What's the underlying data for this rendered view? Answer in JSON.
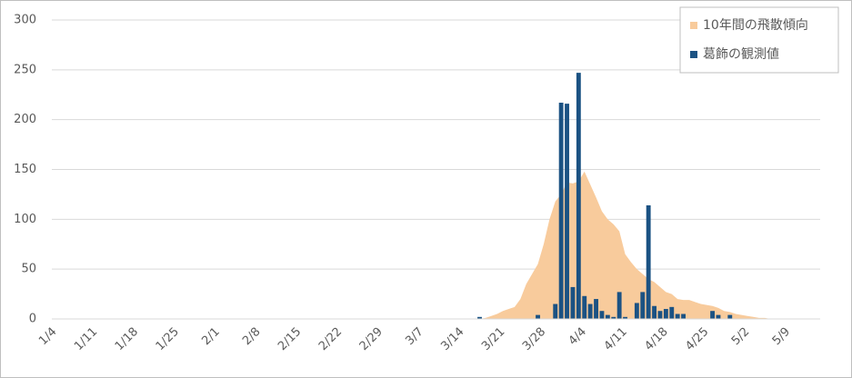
{
  "chart_data": {
    "type": "bar",
    "categories": [
      "1/4",
      null,
      null,
      null,
      null,
      null,
      null,
      "1/11",
      null,
      null,
      null,
      null,
      null,
      null,
      "1/18",
      null,
      null,
      null,
      null,
      null,
      null,
      "1/25",
      null,
      null,
      null,
      null,
      null,
      null,
      "2/1",
      null,
      null,
      null,
      null,
      null,
      null,
      "2/8",
      null,
      null,
      null,
      null,
      null,
      null,
      "2/15",
      null,
      null,
      null,
      null,
      null,
      null,
      "2/22",
      null,
      null,
      null,
      null,
      null,
      null,
      "2/29",
      null,
      null,
      null,
      null,
      null,
      null,
      "3/7",
      null,
      null,
      null,
      null,
      null,
      null,
      "3/14",
      null,
      null,
      null,
      null,
      null,
      null,
      "3/21",
      null,
      null,
      null,
      null,
      null,
      null,
      "3/28",
      null,
      null,
      null,
      null,
      null,
      null,
      "4/4",
      null,
      null,
      null,
      null,
      null,
      null,
      "4/11",
      null,
      null,
      null,
      null,
      null,
      null,
      "4/18",
      null,
      null,
      null,
      null,
      null,
      null,
      "4/25",
      null,
      null,
      null,
      null,
      null,
      null,
      "5/2",
      null,
      null,
      null,
      null,
      null,
      null,
      "5/9",
      null,
      null,
      null,
      null,
      null
    ],
    "series": [
      {
        "name": "10年間の飛散傾向",
        "type": "area",
        "color": "#f8cb9c",
        "values": [
          0,
          0,
          0,
          0,
          0,
          0,
          0,
          0,
          0,
          0,
          0,
          0,
          0,
          0,
          0,
          0,
          0,
          0,
          0,
          0,
          0,
          0,
          0,
          0,
          0,
          0,
          0,
          0,
          0,
          0,
          0,
          0,
          0,
          0,
          0,
          0,
          0,
          0,
          0,
          0,
          0,
          0,
          0,
          0,
          0,
          0,
          0,
          0,
          0,
          0,
          0,
          0,
          0,
          0,
          0,
          0,
          0,
          0,
          0,
          0,
          0,
          0,
          0,
          0,
          0,
          0,
          0,
          0,
          0,
          0,
          0,
          0,
          0,
          0,
          1,
          3,
          5,
          8,
          10,
          12,
          20,
          35,
          45,
          55,
          75,
          100,
          118,
          125,
          137,
          136,
          138,
          148,
          135,
          122,
          108,
          100,
          95,
          88,
          65,
          57,
          50,
          45,
          40,
          37,
          32,
          27,
          25,
          20,
          19,
          19,
          17,
          15,
          14,
          13,
          11,
          8,
          7,
          5,
          4,
          3,
          2,
          1,
          1,
          0,
          0,
          0,
          0,
          0,
          0,
          0,
          0,
          0
        ]
      },
      {
        "name": "葛飾の観測値",
        "type": "bar",
        "color": "#1b5283",
        "values": [
          0,
          0,
          0,
          0,
          0,
          0,
          0,
          0,
          0,
          0,
          0,
          0,
          0,
          0,
          0,
          0,
          0,
          0,
          0,
          0,
          0,
          0,
          0,
          0,
          0,
          0,
          0,
          0,
          0,
          0,
          0,
          0,
          0,
          0,
          0,
          0,
          0,
          0,
          0,
          0,
          0,
          0,
          0,
          0,
          0,
          0,
          0,
          0,
          0,
          0,
          0,
          0,
          0,
          0,
          0,
          0,
          0,
          0,
          0,
          0,
          0,
          0,
          0,
          0,
          0,
          0,
          0,
          0,
          0,
          0,
          0,
          0,
          0,
          2,
          0,
          0,
          0,
          0,
          0,
          0,
          0,
          0,
          0,
          4,
          0,
          0,
          15,
          217,
          216,
          32,
          247,
          23,
          15,
          20,
          8,
          4,
          2,
          27,
          2,
          0,
          16,
          27,
          114,
          13,
          8,
          10,
          12,
          5,
          5,
          0,
          0,
          0,
          0,
          8,
          4,
          0,
          4,
          0,
          0,
          0,
          0,
          0,
          0,
          0,
          0,
          0,
          0,
          0,
          0,
          0,
          0,
          0
        ]
      }
    ],
    "ylim": [
      0,
      300
    ],
    "yticks": [
      0,
      50,
      100,
      150,
      200,
      250,
      300
    ],
    "grid": true,
    "legend": "top-right"
  }
}
